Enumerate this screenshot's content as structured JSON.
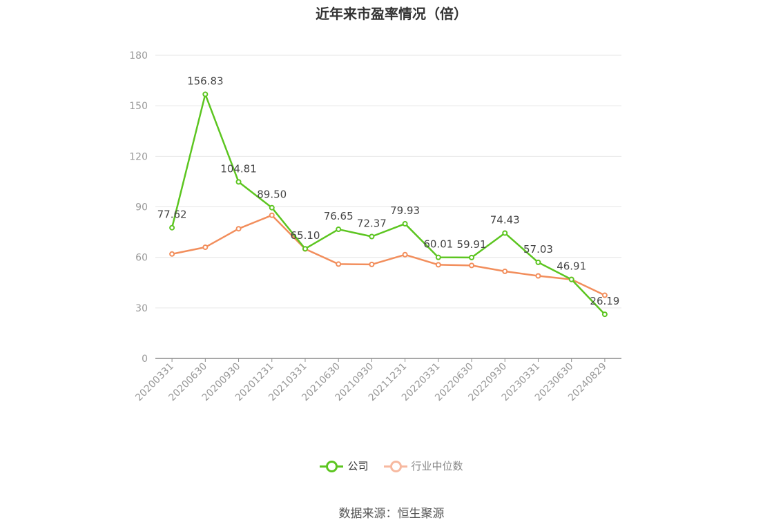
{
  "chart_data": {
    "type": "line",
    "title": "近年来市盈率情况（倍）",
    "categories": [
      "20200331",
      "20200630",
      "20200930",
      "20201231",
      "20210331",
      "20210630",
      "20210930",
      "20211231",
      "20220331",
      "20220630",
      "20220930",
      "20230331",
      "20230630",
      "20240829"
    ],
    "series": [
      {
        "name": "公司",
        "color": "#5cc520",
        "values": [
          77.62,
          156.83,
          104.81,
          89.5,
          65.1,
          76.65,
          72.37,
          79.93,
          60.01,
          59.91,
          74.43,
          57.03,
          46.91,
          26.19
        ],
        "labels": [
          "77.62",
          "156.83",
          "104.81",
          "89.50",
          "65.10",
          "76.65",
          "72.37",
          "79.93",
          "60.01",
          "59.91",
          "74.43",
          "57.03",
          "46.91",
          "26.19"
        ]
      },
      {
        "name": "行业中位数",
        "color": "#f28e5c",
        "values": [
          62.0,
          66.0,
          77.0,
          85.0,
          65.0,
          56.0,
          55.8,
          61.6,
          55.6,
          55.2,
          51.7,
          49.0,
          46.9,
          37.5
        ]
      }
    ],
    "yticks": [
      "0",
      "30",
      "60",
      "90",
      "120",
      "150",
      "180"
    ],
    "ylim": [
      0,
      180
    ],
    "grid": true,
    "legend": "bottom-center"
  },
  "legend_labels": {
    "company": "公司",
    "industry": "行业中位数"
  },
  "source": "数据来源：恒生聚源"
}
